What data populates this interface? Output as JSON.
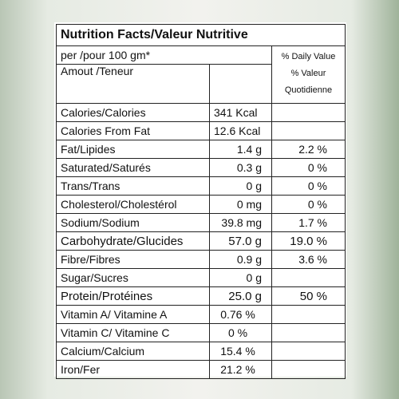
{
  "title": "Nutrition Facts/Valeur Nutritive",
  "header": {
    "per": "per /pour 100 gm*",
    "amount": "Amout /Teneur",
    "daily_value": [
      "% Daily Value",
      "% Valeur",
      "Quotidienne"
    ]
  },
  "rows": [
    [
      "Calories/Calories",
      "341 Kcal"
    ],
    [
      "Calories From Fat",
      "12.6 Kcal"
    ],
    [
      "Fat/Lipides",
      "1.4 g",
      "2.2 %"
    ],
    [
      "Saturated/Saturés",
      "0.3 g",
      "0 %"
    ],
    [
      "Trans/Trans",
      "0 g",
      "0 %"
    ],
    [
      "Cholesterol/Cholestérol",
      "0 mg",
      "0 %"
    ],
    [
      "Sodium/Sodium",
      "39.8 mg",
      "1.7 %"
    ],
    [
      "Carbohydrate/Glucides",
      "57.0 g",
      "19.0 %"
    ],
    [
      "Fibre/Fibres",
      "0.9 g",
      "3.6 %"
    ],
    [
      "Sugar/Sucres",
      "0 g"
    ],
    [
      "Protein/Protéines",
      "25.0 g",
      "50 %"
    ],
    [
      "Vitamin A/ Vitamine A",
      "0.76 %"
    ],
    [
      "Vitamin C/ Vitamine C",
      "0 %"
    ],
    [
      "Calcium/Calcium",
      "15.4 %"
    ],
    [
      "Iron/Fer",
      "21.2 %"
    ]
  ]
}
